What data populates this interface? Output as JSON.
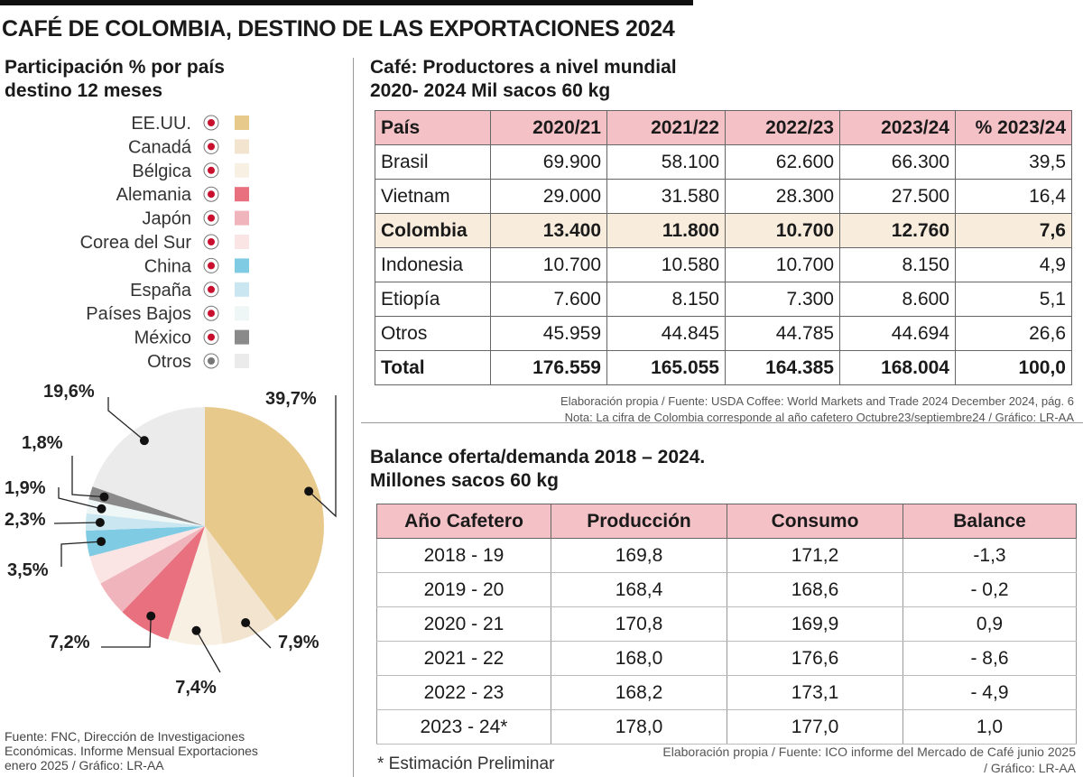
{
  "title": "CAFÉ DE COLOMBIA, DESTINO DE LAS EXPORTACIONES 2024",
  "chart_data": {
    "type": "pie",
    "title": [
      "Participación % por país",
      "destino 12 meses"
    ],
    "categories": [
      "EE.UU.",
      "Canadá",
      "Bélgica",
      "Alemania",
      "Japón",
      "Corea del Sur",
      "China",
      "España",
      "Países Bajos",
      "México",
      "Otros"
    ],
    "values": [
      39.7,
      7.9,
      7.4,
      7.2,
      4.8,
      3.9,
      3.5,
      2.3,
      1.9,
      1.8,
      19.6
    ],
    "value_labels": [
      "39,7%",
      "7,9%",
      "7,4%",
      "7,2%",
      null,
      null,
      "3,5%",
      "2,3%",
      "1,9%",
      "1,8%",
      "19,6%"
    ],
    "colors": [
      "#e8c98c",
      "#f2e4cf",
      "#f9f0e4",
      "#e8707f",
      "#f0b5bc",
      "#fbe4e4",
      "#7fcbe3",
      "#c9e6f1",
      "#eef6f6",
      "#8a8a8a",
      "#ebebeb"
    ],
    "legend": "left",
    "source": [
      "Fuente: FNC, Dirección de Investigaciones",
      "Económicas. Informe Mensual Exportaciones",
      "enero 2025 / Gráfico: LR-AA"
    ]
  },
  "production_table": {
    "title": [
      "Café: Productores a nivel mundial",
      "2020- 2024 Mil sacos 60 kg"
    ],
    "header": [
      "País",
      "2020/21",
      "2021/22",
      "2022/23",
      "2023/24",
      "% 2023/24"
    ],
    "rows": [
      [
        "Brasil",
        "69.900",
        "58.100",
        "62.600",
        "66.300",
        "39,5"
      ],
      [
        "Vietnam",
        "29.000",
        "31.580",
        "28.300",
        "27.500",
        "16,4"
      ],
      [
        "Colombia",
        "13.400",
        "11.800",
        "10.700",
        "12.760",
        "7,6"
      ],
      [
        "Indonesia",
        "10.700",
        "10.580",
        "10.700",
        "8.150",
        "4,9"
      ],
      [
        "Etiopía",
        "7.600",
        "8.150",
        "7.300",
        "8.600",
        "5,1"
      ],
      [
        "Otros",
        "45.959",
        "44.845",
        "44.785",
        "44.694",
        "26,6"
      ],
      [
        "Total",
        "176.559",
        "165.055",
        "164.385",
        "168.004",
        "100,0"
      ]
    ],
    "notes": [
      "Elaboración propia / Fuente: USDA Coffee: World Markets and Trade 2024 December 2024, pág. 6",
      "Nota: La cifra de Colombia corresponde al año cafetero Octubre23/septiembre24  / Gráfico: LR-AA"
    ]
  },
  "balance_table": {
    "title": [
      "Balance oferta/demanda 2018 – 2024.",
      "Millones sacos 60 kg"
    ],
    "header": [
      "Año Cafetero",
      "Producción",
      "Consumo",
      "Balance"
    ],
    "rows": [
      [
        "2018  - 19",
        "169,8",
        "171,2",
        "-1,3"
      ],
      [
        "2019  - 20",
        "168,4",
        "168,6",
        "- 0,2"
      ],
      [
        "2020  - 21",
        "170,8",
        "169,9",
        "0,9"
      ],
      [
        "2021  - 22",
        "168,0",
        "176,6",
        "- 8,6"
      ],
      [
        "2022  - 23",
        "168,2",
        "173,1",
        "- 4,9"
      ],
      [
        "2023  - 24*",
        "178,0",
        "177,0",
        "1,0"
      ]
    ],
    "footnote": "* Estimación Preliminar",
    "source": [
      "Elaboración propia / Fuente: ICO informe del Mercado de Café junio 2025",
      "/ Gráfico: LR-AA"
    ]
  }
}
